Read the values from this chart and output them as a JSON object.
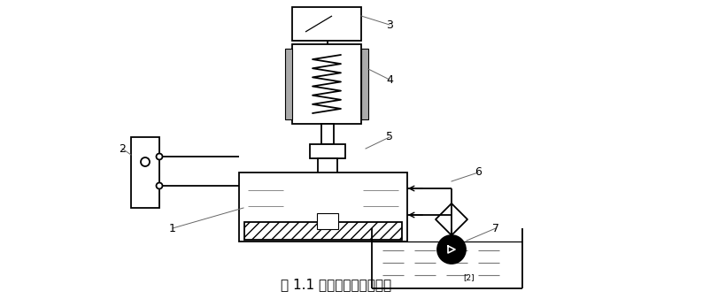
{
  "bg_color": "#ffffff",
  "lc": "#000000",
  "gray": "#666666",
  "caption": "图 1.1 电火花加工基本原理",
  "superscript": "[2]",
  "lw": 1.3,
  "label_fs": 9,
  "caption_fs": 11
}
